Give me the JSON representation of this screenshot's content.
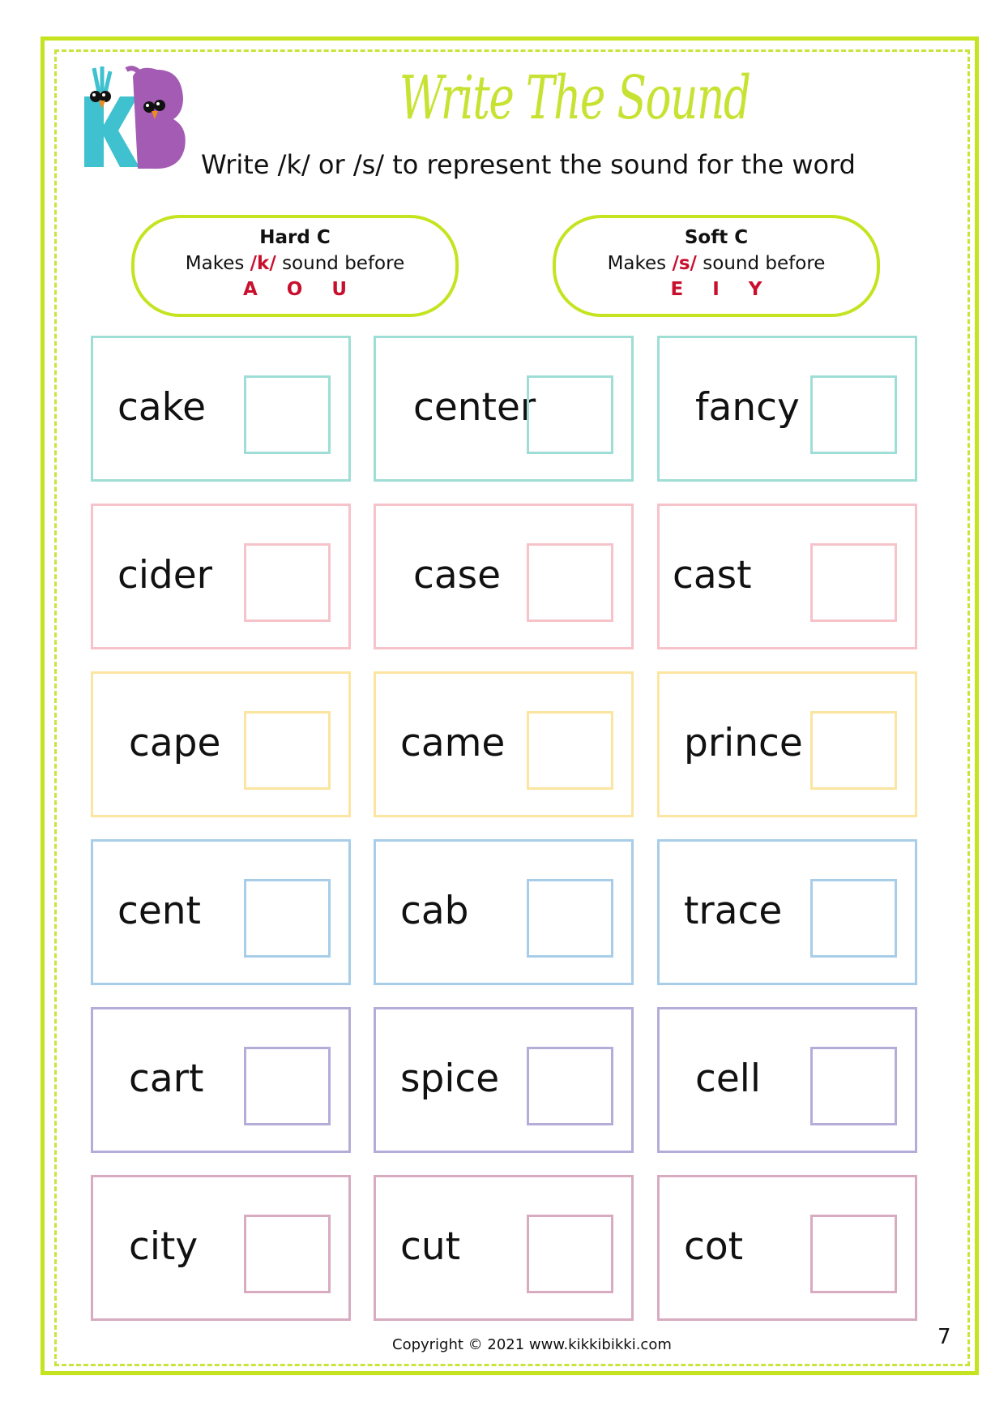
{
  "logo": {
    "letters": "KB",
    "colors": {
      "k": "#3fc1cf",
      "b": "#a45bb4"
    }
  },
  "title": "Write The Sound",
  "subtitle": "Write /k/ or /s/ to represent the sound for the word",
  "rules": [
    {
      "heading": "Hard C",
      "pre": "Makes ",
      "sound": "/k/",
      "post": " sound before",
      "letters": "A O U"
    },
    {
      "heading": "Soft C",
      "pre": "Makes ",
      "sound": "/s/",
      "post": " sound before",
      "letters": "E I Y"
    }
  ],
  "row_colors": [
    "#9fded6",
    "#f6c3ca",
    "#fbe5a0",
    "#a8cde8",
    "#b6acd9",
    "#d8abc0"
  ],
  "words": [
    [
      "cake",
      "center",
      "fancy"
    ],
    [
      "cider",
      "case",
      "cast"
    ],
    [
      "cape",
      "came",
      "prince"
    ],
    [
      "cent",
      "cab",
      "trace"
    ],
    [
      "cart",
      "spice",
      "cell"
    ],
    [
      "city",
      "cut",
      "cot"
    ]
  ],
  "footer": {
    "copyright": "Copyright © 2021 www.kikkibikki.com",
    "page_number": "7"
  },
  "accent_color": "#c5e31f",
  "highlight_color": "#c8102e"
}
